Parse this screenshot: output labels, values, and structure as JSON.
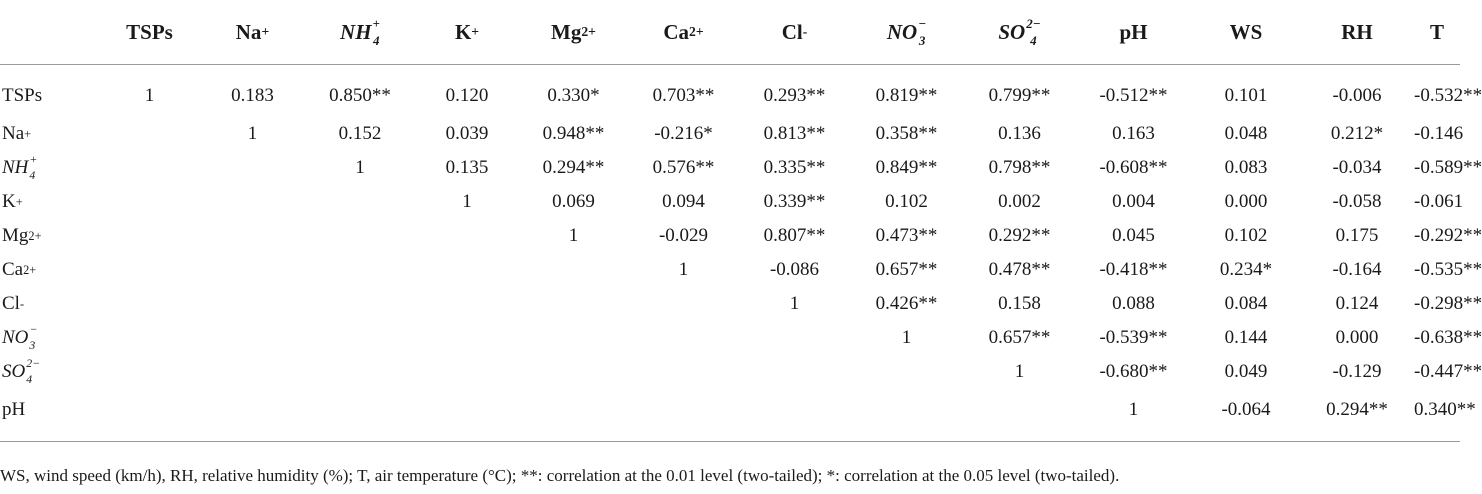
{
  "table": {
    "headers": [
      {
        "base": "",
        "sup": "",
        "sub": "",
        "italic": false
      },
      {
        "base": "TSPs",
        "sup": "",
        "sub": "",
        "italic": false
      },
      {
        "base": "Na",
        "sup": "+",
        "sub": "",
        "italic": false
      },
      {
        "base": "NH",
        "sup": "+",
        "sub": "4",
        "italic": true
      },
      {
        "base": "K",
        "sup": "+",
        "sub": "",
        "italic": false
      },
      {
        "base": "Mg",
        "sup": "2+",
        "sub": "",
        "italic": false
      },
      {
        "base": "Ca",
        "sup": "2+",
        "sub": "",
        "italic": false
      },
      {
        "base": "Cl",
        "sup": "-",
        "sub": "",
        "italic": false
      },
      {
        "base": "NO",
        "sup": "−",
        "sub": "3",
        "italic": true
      },
      {
        "base": "SO",
        "sup": "2−",
        "sub": "4",
        "italic": true
      },
      {
        "base": "pH",
        "sup": "",
        "sub": "",
        "italic": false
      },
      {
        "base": "WS",
        "sup": "",
        "sub": "",
        "italic": false
      },
      {
        "base": "RH",
        "sup": "",
        "sub": "",
        "italic": false
      },
      {
        "base": "T",
        "sup": "",
        "sub": "",
        "italic": false
      }
    ],
    "rows": [
      {
        "label": {
          "base": "TSPs",
          "sup": "",
          "sub": "",
          "italic": false
        },
        "cells": [
          "1",
          "0.183",
          "0.850**",
          "0.120",
          "0.330*",
          "0.703**",
          "0.293**",
          "0.819**",
          "0.799**",
          "-0.512**",
          "0.101",
          "-0.006",
          "-0.532**"
        ]
      },
      {
        "label": {
          "base": "Na",
          "sup": "+",
          "sub": "",
          "italic": false
        },
        "cells": [
          "",
          "1",
          "0.152",
          "0.039",
          "0.948**",
          "-0.216*",
          "0.813**",
          "0.358**",
          "0.136",
          "0.163",
          "0.048",
          "0.212*",
          "-0.146"
        ]
      },
      {
        "label": {
          "base": "NH",
          "sup": "+",
          "sub": "4",
          "italic": true
        },
        "cells": [
          "",
          "",
          "1",
          "0.135",
          "0.294**",
          "0.576**",
          "0.335**",
          "0.849**",
          "0.798**",
          "-0.608**",
          "0.083",
          "-0.034",
          "-0.589**"
        ]
      },
      {
        "label": {
          "base": "K",
          "sup": "+",
          "sub": "",
          "italic": false
        },
        "cells": [
          "",
          "",
          "",
          "1",
          "0.069",
          "0.094",
          "0.339**",
          "0.102",
          "0.002",
          "0.004",
          "0.000",
          "-0.058",
          "-0.061"
        ]
      },
      {
        "label": {
          "base": "Mg",
          "sup": "2+",
          "sub": "",
          "italic": false
        },
        "cells": [
          "",
          "",
          "",
          "",
          "1",
          "-0.029",
          "0.807**",
          "0.473**",
          "0.292**",
          "0.045",
          "0.102",
          "0.175",
          "-0.292**"
        ]
      },
      {
        "label": {
          "base": "Ca",
          "sup": "2+",
          "sub": "",
          "italic": false
        },
        "cells": [
          "",
          "",
          "",
          "",
          "",
          "1",
          "-0.086",
          "0.657**",
          "0.478**",
          "-0.418**",
          "0.234*",
          "-0.164",
          "-0.535**"
        ]
      },
      {
        "label": {
          "base": "Cl",
          "sup": "-",
          "sub": "",
          "italic": false
        },
        "cells": [
          "",
          "",
          "",
          "",
          "",
          "",
          "1",
          "0.426**",
          "0.158",
          "0.088",
          "0.084",
          "0.124",
          "-0.298**"
        ]
      },
      {
        "label": {
          "base": "NO",
          "sup": "−",
          "sub": "3",
          "italic": true
        },
        "cells": [
          "",
          "",
          "",
          "",
          "",
          "",
          "",
          "1",
          "0.657**",
          "-0.539**",
          "0.144",
          "0.000",
          "-0.638**"
        ]
      },
      {
        "label": {
          "base": "SO",
          "sup": "2−",
          "sub": "4",
          "italic": true
        },
        "cells": [
          "",
          "",
          "",
          "",
          "",
          "",
          "",
          "",
          "1",
          "-0.680**",
          "0.049",
          "-0.129",
          "-0.447**"
        ]
      },
      {
        "label": {
          "base": "pH",
          "sup": "",
          "sub": "",
          "italic": false
        },
        "cells": [
          "",
          "",
          "",
          "",
          "",
          "",
          "",
          "",
          "",
          "1",
          "-0.064",
          "0.294**",
          "0.340**"
        ]
      }
    ]
  },
  "footnote": "WS, wind speed (km/h), RH, relative humidity (%); T, air temperature (°C); **: correlation at the 0.01 level (two-tailed); *: correlation at the 0.05 level (two-tailed)."
}
